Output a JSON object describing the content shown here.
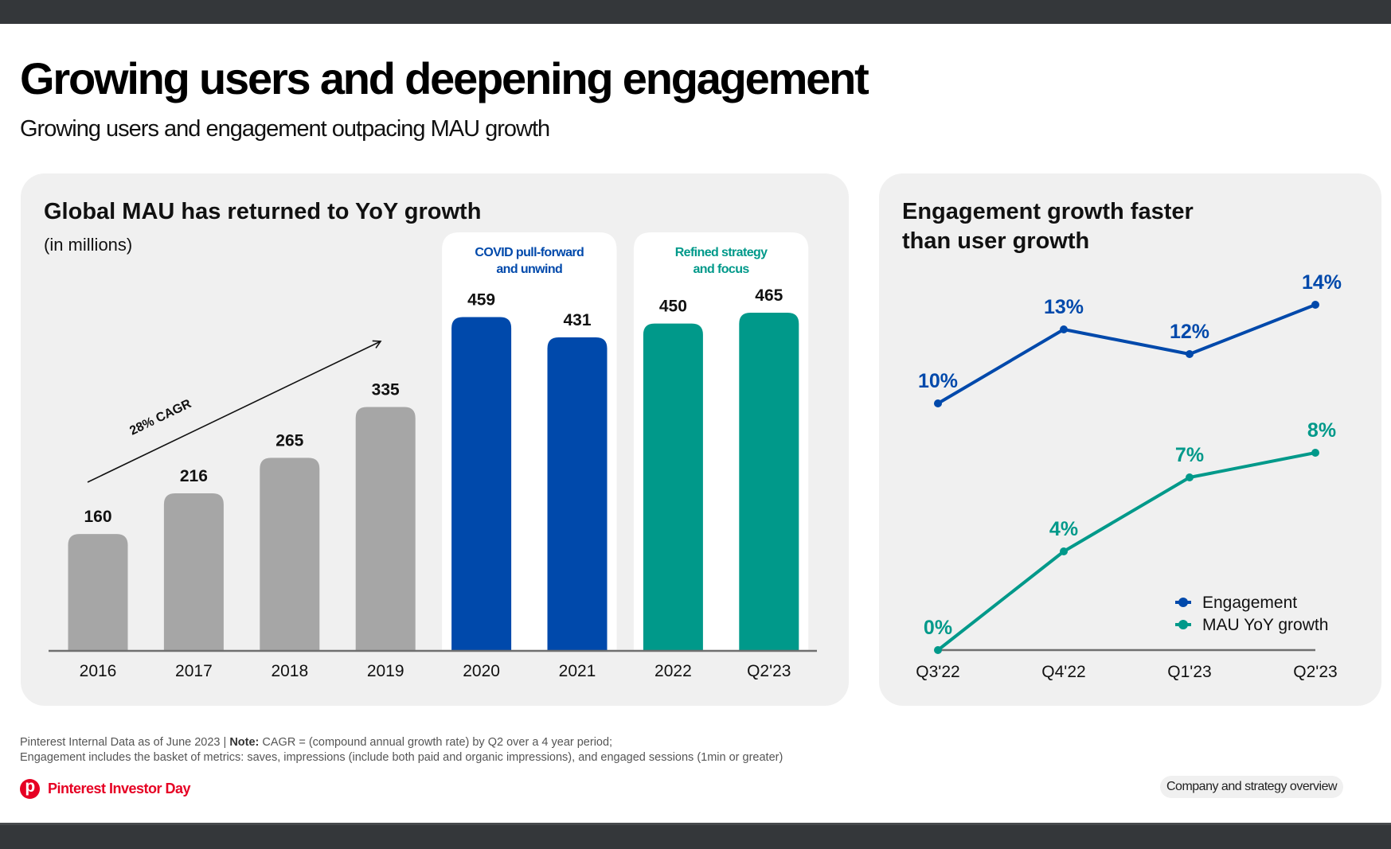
{
  "page": {
    "title": "Growing users and deepening engagement",
    "subtitle": "Growing users and engagement outpacing MAU growth"
  },
  "colors": {
    "gray_bar": "#a6a6a6",
    "blue": "#0049ab",
    "teal": "#00998a",
    "pinterest_red": "#e60023",
    "card_bg": "#f0f0f0"
  },
  "chart_data": [
    {
      "type": "bar",
      "title": "Global MAU has returned to YoY growth",
      "subtitle": "(in millions)",
      "xlabel": "",
      "ylabel": "",
      "categories": [
        "2016",
        "2017",
        "2018",
        "2019",
        "2020",
        "2021",
        "2022",
        "Q2'23"
      ],
      "values": [
        160,
        216,
        265,
        335,
        459,
        431,
        450,
        465
      ],
      "value_labels": [
        "160",
        "216",
        "265",
        "335",
        "459",
        "431",
        "450",
        "465"
      ],
      "bar_groups": [
        "gray",
        "gray",
        "gray",
        "gray",
        "blue",
        "blue",
        "teal",
        "teal"
      ],
      "ylim": [
        0,
        465
      ],
      "grid": false,
      "annotations": [
        {
          "text": "28% CAGR",
          "type": "arrow",
          "from_category": "2016",
          "to_category": "2019"
        },
        {
          "text": "COVID pull-forward and unwind",
          "lines": [
            "COVID pull-forward",
            "and unwind"
          ],
          "categories": [
            "2020",
            "2021"
          ],
          "color": "blue"
        },
        {
          "text": "Refined strategy and focus",
          "lines": [
            "Refined strategy",
            "and focus"
          ],
          "categories": [
            "2022",
            "Q2'23"
          ],
          "color": "teal"
        }
      ]
    },
    {
      "type": "line",
      "title": "Engagement growth faster than user growth",
      "title_lines": [
        "Engagement growth faster",
        "than user growth"
      ],
      "x": [
        "Q3'22",
        "Q4'22",
        "Q1'23",
        "Q2'23"
      ],
      "series": [
        {
          "name": "Engagement",
          "values": [
            10,
            13,
            12,
            14
          ],
          "labels": [
            "10%",
            "13%",
            "12%",
            "14%"
          ],
          "color": "blue"
        },
        {
          "name": "MAU YoY growth",
          "values": [
            0,
            4,
            7,
            8
          ],
          "labels": [
            "0%",
            "4%",
            "7%",
            "8%"
          ],
          "color": "teal"
        }
      ],
      "ylim": [
        0,
        14
      ],
      "grid": false,
      "legend_position": "bottom-right"
    }
  ],
  "footer": {
    "note_prefix": "Pinterest Internal Data as of June 2023 | ",
    "note_bold": "Note:",
    "note_rest": " CAGR = (compound annual growth rate) by Q2 over a 4 year period;",
    "note_line2": "Engagement includes the basket of metrics: saves, impressions (include both paid and organic impressions), and engaged sessions (1min or greater)",
    "brand": "Pinterest Investor Day",
    "section": "Company and strategy overview"
  }
}
